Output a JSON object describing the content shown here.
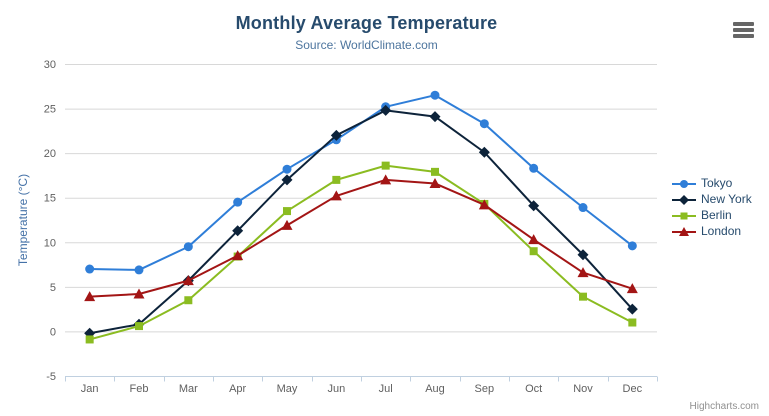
{
  "chart_data": {
    "type": "line",
    "title": "Monthly Average Temperature",
    "subtitle": "Source: WorldClimate.com",
    "categories": [
      "Jan",
      "Feb",
      "Mar",
      "Apr",
      "May",
      "Jun",
      "Jul",
      "Aug",
      "Sep",
      "Oct",
      "Nov",
      "Dec"
    ],
    "xlabel": "",
    "ylabel": "Temperature (°C)",
    "ylim": [
      -5,
      30
    ],
    "ytick_interval": 5,
    "yticks": [
      -5,
      0,
      5,
      10,
      15,
      20,
      25,
      30
    ],
    "grid": true,
    "legend_position": "right",
    "series": [
      {
        "name": "Tokyo",
        "color": "#2f7ed8",
        "marker": "circle",
        "values": [
          7.0,
          6.9,
          9.5,
          14.5,
          18.2,
          21.5,
          25.2,
          26.5,
          23.3,
          18.3,
          13.9,
          9.6
        ]
      },
      {
        "name": "New York",
        "color": "#0d233a",
        "marker": "diamond",
        "values": [
          -0.2,
          0.8,
          5.7,
          11.3,
          17.0,
          22.0,
          24.8,
          24.1,
          20.1,
          14.1,
          8.6,
          2.5
        ]
      },
      {
        "name": "Berlin",
        "color": "#8bbc21",
        "marker": "square",
        "values": [
          -0.9,
          0.6,
          3.5,
          8.4,
          13.5,
          17.0,
          18.6,
          17.9,
          14.3,
          9.0,
          3.9,
          1.0
        ]
      },
      {
        "name": "London",
        "color": "#a31515",
        "marker": "triangle",
        "values": [
          3.9,
          4.2,
          5.7,
          8.5,
          11.9,
          15.2,
          17.0,
          16.6,
          14.2,
          10.3,
          6.6,
          4.8
        ]
      }
    ]
  },
  "style": {
    "title_color": "#274b6d",
    "subtitle_color": "#4d759e",
    "yaxis_title_color": "#4572a7",
    "tick_label_color": "#606060",
    "grid_color": "#d8d8d8",
    "axis_line_color": "#c0d0e0",
    "legend_text_color": "#274b6d",
    "menu_icon_color": "#666666"
  },
  "icons": {
    "context_menu": "hamburger"
  },
  "credits": "Highcharts.com"
}
